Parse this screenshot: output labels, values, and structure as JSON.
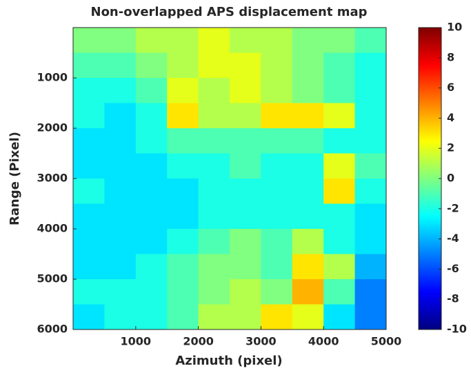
{
  "chart_data": {
    "type": "heatmap",
    "title": "Non-overlapped APS displacement map",
    "x_label": "Azimuth (pixel)",
    "y_label": "Range (Pixel)",
    "x_bins": [
      0,
      500,
      1000,
      1500,
      2000,
      2500,
      3000,
      3500,
      4000,
      4500,
      5000
    ],
    "y_bins": [
      0,
      500,
      1000,
      1500,
      2000,
      2500,
      3000,
      3500,
      4000,
      4500,
      5000,
      5500,
      6000
    ],
    "values": [
      [
        0,
        0,
        1,
        1,
        2,
        1,
        1,
        0,
        0,
        -1
      ],
      [
        -1,
        -1,
        0,
        1,
        2,
        2,
        1,
        0,
        -1,
        -2
      ],
      [
        -2,
        -2,
        -1,
        2,
        1,
        2,
        1,
        0,
        -1,
        -2
      ],
      [
        -2,
        -3,
        -2,
        3,
        1,
        1,
        3,
        3,
        2,
        -2
      ],
      [
        -3,
        -3,
        -2,
        -1,
        -1,
        -1,
        -1,
        -1,
        -2,
        -2
      ],
      [
        -3,
        -3,
        -3,
        -2,
        -2,
        -1,
        -2,
        -2,
        2,
        -1
      ],
      [
        -2,
        -3,
        -3,
        -3,
        -2,
        -2,
        -2,
        -2,
        3,
        -2
      ],
      [
        -3,
        -3,
        -3,
        -3,
        -2,
        -2,
        -2,
        -2,
        -2,
        -3
      ],
      [
        -3,
        -3,
        -3,
        -2,
        -1,
        0,
        -1,
        1,
        -2,
        -3
      ],
      [
        -3,
        -3,
        -2,
        -1,
        0,
        0,
        -1,
        3,
        1,
        -4
      ],
      [
        -2,
        -2,
        -2,
        -1,
        0,
        1,
        0,
        4,
        -1,
        -5
      ],
      [
        -3,
        -2,
        -2,
        -1,
        1,
        1,
        3,
        2,
        -3,
        -5
      ]
    ],
    "xlim": [
      0,
      5000
    ],
    "ylim": [
      0,
      6000
    ],
    "y_reversed": true,
    "xticks": [
      1000,
      2000,
      3000,
      4000,
      5000
    ],
    "yticks": [
      1000,
      2000,
      3000,
      4000,
      5000,
      6000
    ],
    "colormap": "jet",
    "clim": [
      -10,
      10
    ],
    "cticks": [
      -10,
      -8,
      -6,
      -4,
      -2,
      0,
      2,
      4,
      6,
      8,
      10
    ]
  }
}
